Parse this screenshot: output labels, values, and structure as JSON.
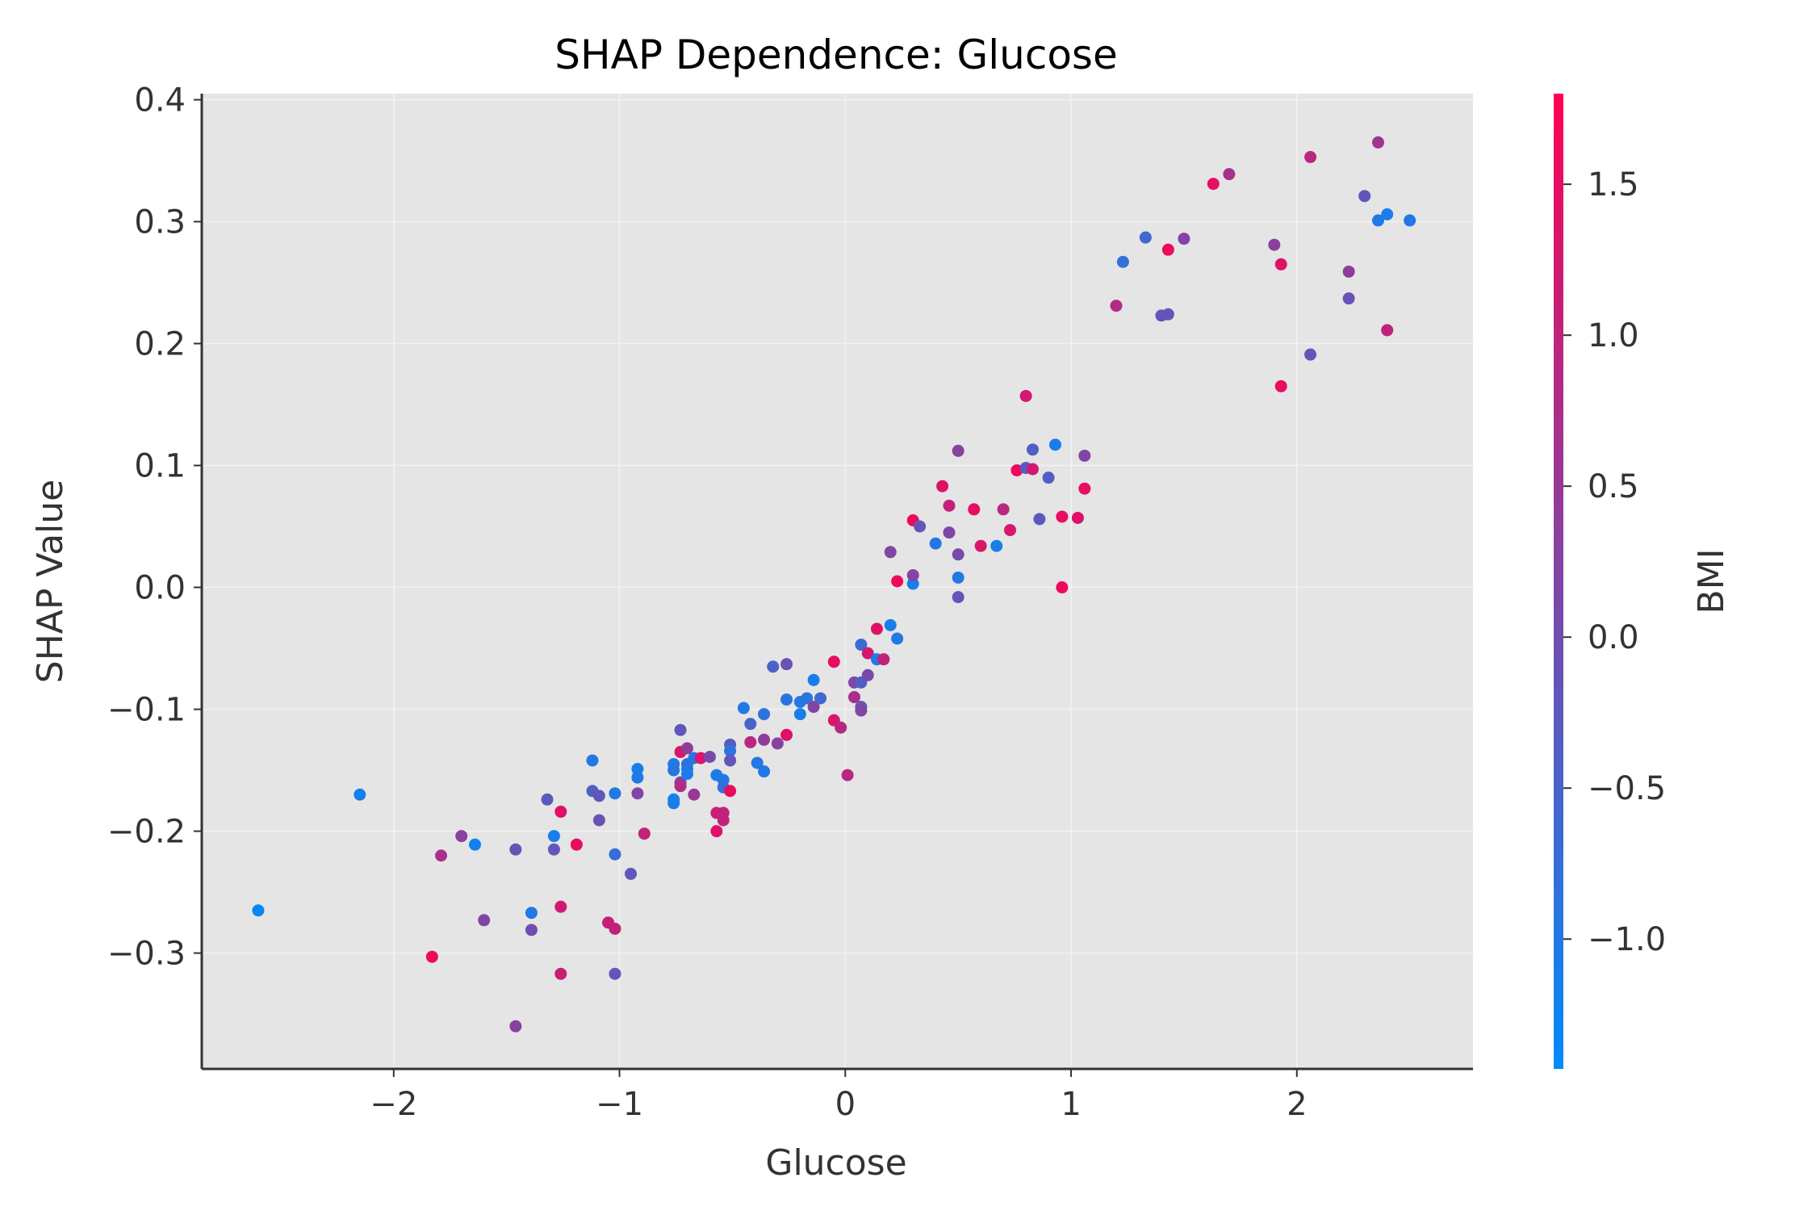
{
  "chart_data": {
    "type": "scatter",
    "title": "SHAP Dependence: Glucose",
    "xlabel": "Glucose",
    "ylabel": "SHAP Value",
    "xlim": [
      -2.85,
      2.78
    ],
    "ylim": [
      -0.395,
      0.405
    ],
    "xticks": [
      -2,
      -1,
      0,
      1,
      2
    ],
    "xtick_labels": [
      "−2",
      "−1",
      "0",
      "1",
      "2"
    ],
    "yticks": [
      -0.3,
      -0.2,
      -0.1,
      0.0,
      0.1,
      0.2,
      0.3,
      0.4
    ],
    "ytick_labels": [
      "−0.3",
      "−0.2",
      "−0.1",
      "0.0",
      "0.1",
      "0.2",
      "0.3",
      "0.4"
    ],
    "grid": true,
    "background_color": "#e5e5e5",
    "colorbar": {
      "label": "BMI",
      "range": [
        -1.43,
        1.8
      ],
      "colors": [
        "#008bfb",
        "#ff0051"
      ],
      "ticks": [
        -1.0,
        -0.5,
        0.0,
        0.5,
        1.0,
        1.5
      ],
      "tick_labels": [
        "−1.0",
        "−0.5",
        "0.0",
        "0.5",
        "1.0",
        "1.5"
      ]
    },
    "points": [
      {
        "x": -2.6,
        "y": -0.265,
        "c": -1.3
      },
      {
        "x": -2.15,
        "y": -0.17,
        "c": -1.2
      },
      {
        "x": -1.83,
        "y": -0.303,
        "c": 1.6
      },
      {
        "x": -1.79,
        "y": -0.22,
        "c": 0.7
      },
      {
        "x": -1.7,
        "y": -0.204,
        "c": 0.3
      },
      {
        "x": -1.64,
        "y": -0.211,
        "c": -1.2
      },
      {
        "x": -1.6,
        "y": -0.273,
        "c": 0.2
      },
      {
        "x": -1.46,
        "y": -0.215,
        "c": -0.1
      },
      {
        "x": -1.46,
        "y": -0.36,
        "c": 0.3
      },
      {
        "x": -1.39,
        "y": -0.267,
        "c": -1.0
      },
      {
        "x": -1.39,
        "y": -0.281,
        "c": 0.0
      },
      {
        "x": -1.32,
        "y": -0.174,
        "c": -0.3
      },
      {
        "x": -1.29,
        "y": -0.204,
        "c": -1.1
      },
      {
        "x": -1.29,
        "y": -0.215,
        "c": -0.2
      },
      {
        "x": -1.26,
        "y": -0.184,
        "c": 1.4
      },
      {
        "x": -1.26,
        "y": -0.262,
        "c": 1.2
      },
      {
        "x": -1.26,
        "y": -0.317,
        "c": 1.1
      },
      {
        "x": -1.19,
        "y": -0.211,
        "c": 1.5
      },
      {
        "x": -1.12,
        "y": -0.142,
        "c": -1.0
      },
      {
        "x": -1.12,
        "y": -0.167,
        "c": -0.4
      },
      {
        "x": -1.09,
        "y": -0.171,
        "c": -0.2
      },
      {
        "x": -1.09,
        "y": -0.191,
        "c": -0.1
      },
      {
        "x": -1.05,
        "y": -0.275,
        "c": 1.1
      },
      {
        "x": -1.02,
        "y": -0.169,
        "c": -1.0
      },
      {
        "x": -1.02,
        "y": -0.219,
        "c": -0.7
      },
      {
        "x": -1.02,
        "y": -0.28,
        "c": 1.0
      },
      {
        "x": -1.02,
        "y": -0.317,
        "c": -0.2
      },
      {
        "x": -0.95,
        "y": -0.235,
        "c": -0.2
      },
      {
        "x": -0.92,
        "y": -0.149,
        "c": -1.1
      },
      {
        "x": -0.92,
        "y": -0.156,
        "c": -1.0
      },
      {
        "x": -0.92,
        "y": -0.169,
        "c": 0.2
      },
      {
        "x": -0.89,
        "y": -0.202,
        "c": 1.0
      },
      {
        "x": -0.76,
        "y": -0.145,
        "c": -1.1
      },
      {
        "x": -0.76,
        "y": -0.15,
        "c": -0.9
      },
      {
        "x": -0.76,
        "y": -0.174,
        "c": -1.2
      },
      {
        "x": -0.76,
        "y": -0.177,
        "c": -1.1
      },
      {
        "x": -0.73,
        "y": -0.117,
        "c": -0.2
      },
      {
        "x": -0.73,
        "y": -0.135,
        "c": 1.3
      },
      {
        "x": -0.73,
        "y": -0.16,
        "c": 0.2
      },
      {
        "x": -0.73,
        "y": -0.163,
        "c": 0.8
      },
      {
        "x": -0.7,
        "y": -0.132,
        "c": 0.4
      },
      {
        "x": -0.7,
        "y": -0.145,
        "c": -0.7
      },
      {
        "x": -0.7,
        "y": -0.149,
        "c": -1.0
      },
      {
        "x": -0.7,
        "y": -0.153,
        "c": -1.1
      },
      {
        "x": -0.67,
        "y": -0.14,
        "c": -1.0
      },
      {
        "x": -0.67,
        "y": -0.17,
        "c": 0.5
      },
      {
        "x": -0.64,
        "y": -0.14,
        "c": 1.3
      },
      {
        "x": -0.6,
        "y": -0.139,
        "c": 0.1
      },
      {
        "x": -0.57,
        "y": -0.154,
        "c": -1.1
      },
      {
        "x": -0.57,
        "y": -0.185,
        "c": 1.1
      },
      {
        "x": -0.57,
        "y": -0.2,
        "c": 1.4
      },
      {
        "x": -0.54,
        "y": -0.158,
        "c": -1.0
      },
      {
        "x": -0.54,
        "y": -0.164,
        "c": -0.8
      },
      {
        "x": -0.54,
        "y": -0.185,
        "c": 1.0
      },
      {
        "x": -0.54,
        "y": -0.191,
        "c": 1.0
      },
      {
        "x": -0.51,
        "y": -0.129,
        "c": -0.3
      },
      {
        "x": -0.51,
        "y": -0.134,
        "c": -0.9
      },
      {
        "x": -0.51,
        "y": -0.142,
        "c": -0.2
      },
      {
        "x": -0.51,
        "y": -0.167,
        "c": 1.5
      },
      {
        "x": -0.45,
        "y": -0.099,
        "c": -1.0
      },
      {
        "x": -0.42,
        "y": -0.112,
        "c": -0.5
      },
      {
        "x": -0.42,
        "y": -0.127,
        "c": 0.9
      },
      {
        "x": -0.39,
        "y": -0.144,
        "c": -1.0
      },
      {
        "x": -0.36,
        "y": -0.104,
        "c": -0.9
      },
      {
        "x": -0.36,
        "y": -0.125,
        "c": 0.4
      },
      {
        "x": -0.36,
        "y": -0.151,
        "c": -1.0
      },
      {
        "x": -0.32,
        "y": -0.065,
        "c": -0.5
      },
      {
        "x": -0.3,
        "y": -0.128,
        "c": 0.3
      },
      {
        "x": -0.26,
        "y": -0.063,
        "c": -0.1
      },
      {
        "x": -0.26,
        "y": -0.092,
        "c": -0.9
      },
      {
        "x": -0.26,
        "y": -0.121,
        "c": 1.4
      },
      {
        "x": -0.2,
        "y": -0.094,
        "c": -1.0
      },
      {
        "x": -0.2,
        "y": -0.104,
        "c": -1.1
      },
      {
        "x": -0.17,
        "y": -0.091,
        "c": -0.9
      },
      {
        "x": -0.14,
        "y": -0.076,
        "c": -1.1
      },
      {
        "x": -0.14,
        "y": -0.098,
        "c": 0.2
      },
      {
        "x": -0.11,
        "y": -0.091,
        "c": -0.6
      },
      {
        "x": -0.05,
        "y": -0.061,
        "c": 1.5
      },
      {
        "x": -0.05,
        "y": -0.109,
        "c": 1.3
      },
      {
        "x": -0.02,
        "y": -0.115,
        "c": 0.9
      },
      {
        "x": 0.01,
        "y": -0.154,
        "c": 0.9
      },
      {
        "x": 0.04,
        "y": -0.078,
        "c": 0.2
      },
      {
        "x": 0.04,
        "y": -0.09,
        "c": 0.7
      },
      {
        "x": 0.07,
        "y": -0.047,
        "c": -0.7
      },
      {
        "x": 0.07,
        "y": -0.078,
        "c": -0.4
      },
      {
        "x": 0.07,
        "y": -0.098,
        "c": -0.1
      },
      {
        "x": 0.07,
        "y": -0.101,
        "c": 0.2
      },
      {
        "x": 0.1,
        "y": -0.054,
        "c": 1.2
      },
      {
        "x": 0.1,
        "y": -0.072,
        "c": 0.1
      },
      {
        "x": 0.14,
        "y": -0.034,
        "c": 1.4
      },
      {
        "x": 0.14,
        "y": -0.059,
        "c": -1.0
      },
      {
        "x": 0.17,
        "y": -0.059,
        "c": 1.0
      },
      {
        "x": 0.2,
        "y": -0.031,
        "c": -1.1
      },
      {
        "x": 0.2,
        "y": 0.029,
        "c": 0.2
      },
      {
        "x": 0.23,
        "y": -0.042,
        "c": -1.0
      },
      {
        "x": 0.23,
        "y": 0.005,
        "c": 1.6
      },
      {
        "x": 0.3,
        "y": 0.003,
        "c": -1.1
      },
      {
        "x": 0.3,
        "y": 0.01,
        "c": 0.2
      },
      {
        "x": 0.3,
        "y": 0.055,
        "c": 1.6
      },
      {
        "x": 0.33,
        "y": 0.05,
        "c": -0.2
      },
      {
        "x": 0.4,
        "y": 0.036,
        "c": -1.0
      },
      {
        "x": 0.43,
        "y": 0.083,
        "c": 1.4
      },
      {
        "x": 0.46,
        "y": 0.045,
        "c": 0.2
      },
      {
        "x": 0.46,
        "y": 0.067,
        "c": 1.0
      },
      {
        "x": 0.5,
        "y": -0.008,
        "c": -0.2
      },
      {
        "x": 0.5,
        "y": 0.008,
        "c": -1.0
      },
      {
        "x": 0.5,
        "y": 0.027,
        "c": 0.1
      },
      {
        "x": 0.5,
        "y": 0.112,
        "c": 0.3
      },
      {
        "x": 0.57,
        "y": 0.064,
        "c": 1.5
      },
      {
        "x": 0.6,
        "y": 0.034,
        "c": 1.3
      },
      {
        "x": 0.67,
        "y": 0.034,
        "c": -1.1
      },
      {
        "x": 0.7,
        "y": 0.064,
        "c": 0.9
      },
      {
        "x": 0.73,
        "y": 0.047,
        "c": 1.3
      },
      {
        "x": 0.76,
        "y": 0.096,
        "c": 1.6
      },
      {
        "x": 0.8,
        "y": 0.098,
        "c": -0.3
      },
      {
        "x": 0.8,
        "y": 0.157,
        "c": 1.2
      },
      {
        "x": 0.83,
        "y": 0.097,
        "c": 1.2
      },
      {
        "x": 0.83,
        "y": 0.113,
        "c": -0.4
      },
      {
        "x": 0.86,
        "y": 0.056,
        "c": -0.3
      },
      {
        "x": 0.9,
        "y": 0.09,
        "c": -0.4
      },
      {
        "x": 0.93,
        "y": 0.117,
        "c": -1.1
      },
      {
        "x": 0.96,
        "y": 0.0,
        "c": 1.6
      },
      {
        "x": 0.96,
        "y": 0.058,
        "c": 1.5
      },
      {
        "x": 1.03,
        "y": 0.057,
        "c": 1.4
      },
      {
        "x": 1.06,
        "y": 0.081,
        "c": 1.5
      },
      {
        "x": 1.06,
        "y": 0.108,
        "c": 0.2
      },
      {
        "x": 1.2,
        "y": 0.231,
        "c": 0.8
      },
      {
        "x": 1.23,
        "y": 0.267,
        "c": -0.8
      },
      {
        "x": 1.33,
        "y": 0.287,
        "c": -0.6
      },
      {
        "x": 1.4,
        "y": 0.223,
        "c": -0.2
      },
      {
        "x": 1.43,
        "y": 0.224,
        "c": -0.1
      },
      {
        "x": 1.43,
        "y": 0.277,
        "c": 1.6
      },
      {
        "x": 1.5,
        "y": 0.286,
        "c": 0.2
      },
      {
        "x": 1.63,
        "y": 0.331,
        "c": 1.5
      },
      {
        "x": 1.7,
        "y": 0.339,
        "c": 0.7
      },
      {
        "x": 1.9,
        "y": 0.281,
        "c": 0.3
      },
      {
        "x": 1.93,
        "y": 0.165,
        "c": 1.5
      },
      {
        "x": 1.93,
        "y": 0.265,
        "c": 1.4
      },
      {
        "x": 2.06,
        "y": 0.191,
        "c": -0.2
      },
      {
        "x": 2.06,
        "y": 0.353,
        "c": 0.9
      },
      {
        "x": 2.23,
        "y": 0.237,
        "c": -0.1
      },
      {
        "x": 2.23,
        "y": 0.259,
        "c": 0.4
      },
      {
        "x": 2.3,
        "y": 0.321,
        "c": -0.2
      },
      {
        "x": 2.36,
        "y": 0.301,
        "c": -1.0
      },
      {
        "x": 2.36,
        "y": 0.365,
        "c": 0.6
      },
      {
        "x": 2.4,
        "y": 0.211,
        "c": 1.0
      },
      {
        "x": 2.4,
        "y": 0.306,
        "c": -1.1
      },
      {
        "x": 2.5,
        "y": 0.301,
        "c": -1.0
      }
    ]
  }
}
